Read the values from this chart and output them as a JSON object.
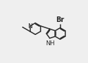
{
  "bg_color": "#efefef",
  "line_color": "#2a2a2a",
  "text_color": "#2a2a2a",
  "line_width": 1.1,
  "font_size": 6.5,
  "figsize": [
    1.28,
    0.92
  ],
  "dpi": 100,
  "xlim": [
    0.0,
    10.5
  ],
  "ylim": [
    0.5,
    8.0
  ]
}
